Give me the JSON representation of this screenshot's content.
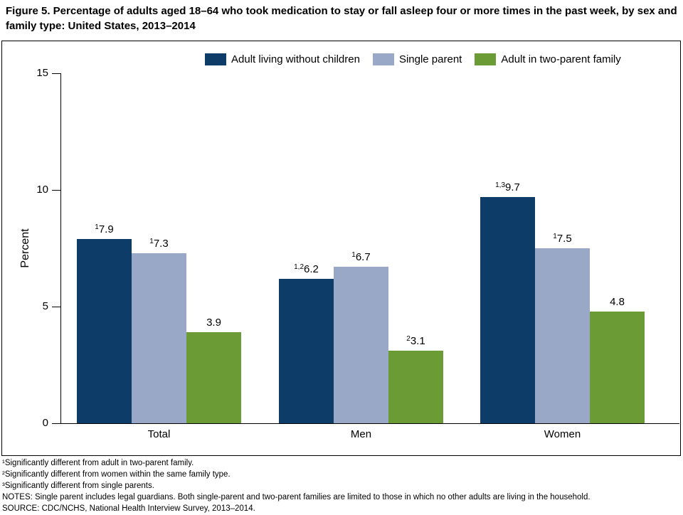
{
  "chart_data": {
    "type": "bar",
    "title": "Figure 5. Percentage of adults aged 18–64 who took medication to stay or fall asleep four or more times in the past week, by sex and family type: United States, 2013–2014",
    "categories": [
      "Total",
      "Men",
      "Women"
    ],
    "series": [
      {
        "name": "Adult living without children",
        "color": "#0e3c69",
        "values": [
          7.9,
          6.2,
          9.7
        ],
        "sups": [
          "1",
          "1,2",
          "1,3"
        ]
      },
      {
        "name": "Single parent",
        "color": "#9aa8c7",
        "values": [
          7.3,
          6.7,
          7.5
        ],
        "sups": [
          "1",
          "1",
          "1"
        ]
      },
      {
        "name": "Adult in two-parent family",
        "color": "#6a9b35",
        "values": [
          3.9,
          3.1,
          4.8
        ],
        "sups": [
          "",
          "2",
          ""
        ]
      }
    ],
    "xlabel": "",
    "ylabel": "Percent",
    "ylim": [
      0,
      15
    ],
    "yticks": [
      0,
      5,
      10,
      15
    ],
    "grid": false,
    "legend_position": "top"
  },
  "footnotes": [
    "¹Significantly different from adult in two-parent family.",
    "²Significantly different from women within the same family type.",
    "³Significantly different from single parents.",
    "NOTES: Single parent includes legal guardians. Both single-parent and two-parent families are limited to those in which no other adults are living in the household.",
    "SOURCE: CDC/NCHS, National Health Interview Survey, 2013–2014."
  ]
}
